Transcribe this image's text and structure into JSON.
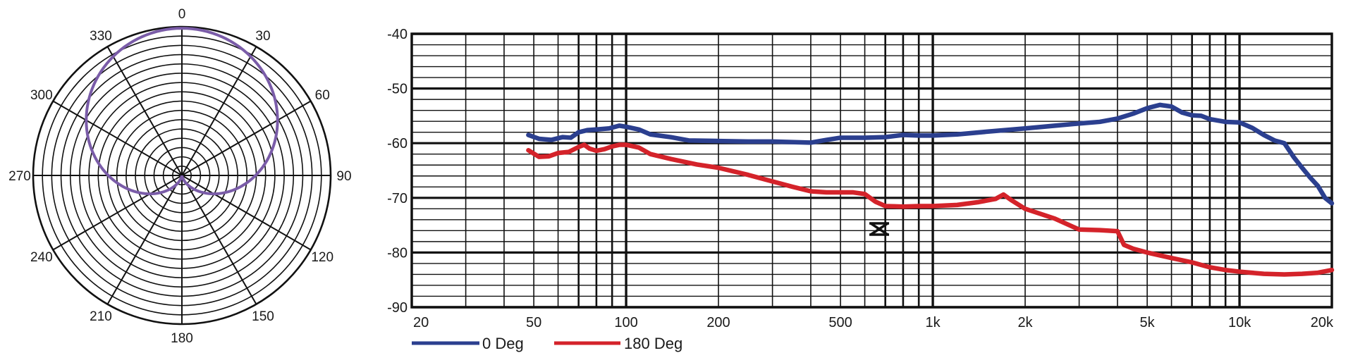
{
  "chart_data": [
    {
      "type": "polar",
      "angle_labels": [
        "0",
        "30",
        "60",
        "90",
        "120",
        "150",
        "180",
        "210",
        "240",
        "270",
        "300",
        "330"
      ],
      "angles_deg": [
        0,
        30,
        60,
        90,
        120,
        150,
        180,
        210,
        240,
        270,
        300,
        330
      ],
      "rings": 16,
      "pattern": "cardioid",
      "pattern_color": "#7a5ca8",
      "grid": true
    },
    {
      "type": "line",
      "x_scale": "log",
      "x_ticks": [
        20,
        50,
        100,
        200,
        500,
        1000,
        2000,
        5000,
        10000,
        20000
      ],
      "x_tick_labels": [
        "20",
        "50",
        "100",
        "200",
        "500",
        "1k",
        "2k",
        "5k",
        "10k",
        "20k"
      ],
      "xlim": [
        20,
        20000
      ],
      "y_ticks": [
        -40,
        -50,
        -60,
        -70,
        -80,
        -90
      ],
      "y_tick_labels": [
        "-40",
        "-50",
        "-60",
        "-70",
        "-80",
        "-90"
      ],
      "ylim": [
        -90,
        -40
      ],
      "grid": true,
      "legend_position": "bottom-left",
      "series": [
        {
          "name": "0 Deg",
          "color": "#2b3f8f",
          "x": [
            48,
            52,
            57,
            62,
            66,
            70,
            75,
            80,
            88,
            95,
            100,
            110,
            120,
            140,
            160,
            200,
            250,
            300,
            400,
            450,
            500,
            600,
            700,
            800,
            900,
            1000,
            1200,
            1500,
            2000,
            2500,
            3000,
            3500,
            4000,
            4500,
            5000,
            5500,
            6000,
            6500,
            7000,
            7500,
            8000,
            9000,
            10000,
            11000,
            12000,
            13000,
            14000,
            15000,
            16000,
            17000,
            18000,
            19000,
            20000
          ],
          "values": [
            -58.5,
            -59.2,
            -59.4,
            -58.9,
            -59.0,
            -58.0,
            -57.6,
            -57.5,
            -57.3,
            -56.8,
            -57.0,
            -57.5,
            -58.4,
            -58.9,
            -59.5,
            -59.6,
            -59.7,
            -59.7,
            -59.9,
            -59.4,
            -59.0,
            -59.0,
            -58.9,
            -58.5,
            -58.6,
            -58.6,
            -58.4,
            -57.9,
            -57.3,
            -56.8,
            -56.4,
            -56.1,
            -55.5,
            -54.6,
            -53.6,
            -53.0,
            -53.3,
            -54.4,
            -54.9,
            -55.0,
            -55.6,
            -56.1,
            -56.2,
            -57.2,
            -58.5,
            -59.5,
            -60.0,
            -62.5,
            -64.5,
            -66.3,
            -67.8,
            -70.0,
            -71.0
          ]
        },
        {
          "name": "180 Deg",
          "color": "#d4232a",
          "x": [
            48,
            52,
            56,
            60,
            65,
            70,
            73,
            76,
            80,
            85,
            90,
            95,
            100,
            110,
            120,
            140,
            170,
            200,
            250,
            300,
            350,
            400,
            450,
            500,
            550,
            600,
            650,
            700,
            800,
            900,
            1000,
            1200,
            1400,
            1600,
            1700,
            1800,
            2000,
            2500,
            3000,
            3500,
            4000,
            4200,
            4500,
            5000,
            6000,
            7000,
            8000,
            9000,
            10000,
            12000,
            14000,
            16000,
            18000,
            20000
          ],
          "values": [
            -61.3,
            -62.5,
            -62.4,
            -61.8,
            -61.6,
            -60.7,
            -60.3,
            -61.0,
            -61.4,
            -61.1,
            -60.6,
            -60.3,
            -60.3,
            -60.8,
            -62.0,
            -62.9,
            -63.9,
            -64.5,
            -65.8,
            -67.0,
            -68.0,
            -68.8,
            -69.0,
            -69.0,
            -69.0,
            -69.3,
            -70.7,
            -71.5,
            -71.6,
            -71.5,
            -71.5,
            -71.3,
            -70.8,
            -70.2,
            -69.4,
            -70.4,
            -72.0,
            -73.8,
            -75.8,
            -75.9,
            -76.1,
            -78.6,
            -79.3,
            -80.0,
            -81.0,
            -81.8,
            -82.7,
            -83.2,
            -83.5,
            -83.9,
            -84.0,
            -83.9,
            -83.7,
            -83.2
          ]
        }
      ]
    }
  ]
}
